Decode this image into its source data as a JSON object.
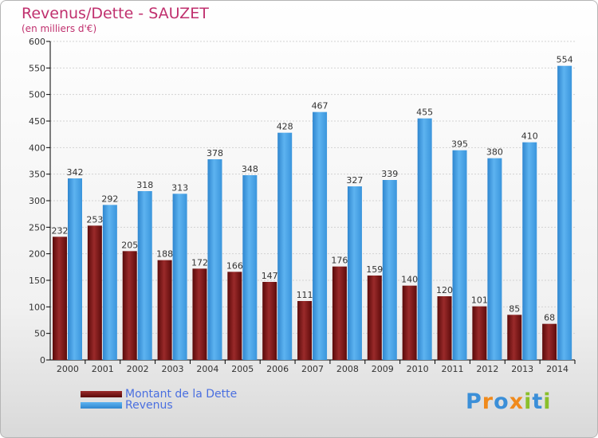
{
  "title": "Revenus/Dette - SAUZET",
  "subtitle": "(en milliers d'€)",
  "logo_text": "Proxiti",
  "colors": {
    "dette": "#7a1212",
    "revenus": "#3f9ee6",
    "title": "#c0306e",
    "legend_text": "#4a6fe0"
  },
  "chart_data": {
    "type": "bar",
    "categories": [
      "2000",
      "2001",
      "2002",
      "2003",
      "2004",
      "2005",
      "2006",
      "2007",
      "2008",
      "2009",
      "2010",
      "2011",
      "2012",
      "2013",
      "2014"
    ],
    "series": [
      {
        "name": "Montant de la Dette",
        "values": [
          232,
          253,
          205,
          188,
          172,
          166,
          147,
          111,
          176,
          159,
          140,
          120,
          101,
          85,
          68
        ]
      },
      {
        "name": "Revenus",
        "values": [
          342,
          292,
          318,
          313,
          378,
          348,
          428,
          467,
          327,
          339,
          455,
          395,
          380,
          410,
          554
        ]
      }
    ],
    "ylim": [
      0,
      600
    ],
    "yticks": [
      0,
      50,
      100,
      150,
      200,
      250,
      300,
      350,
      400,
      450,
      500,
      550,
      600
    ],
    "grid": true,
    "legend_position": "bottom-left"
  }
}
